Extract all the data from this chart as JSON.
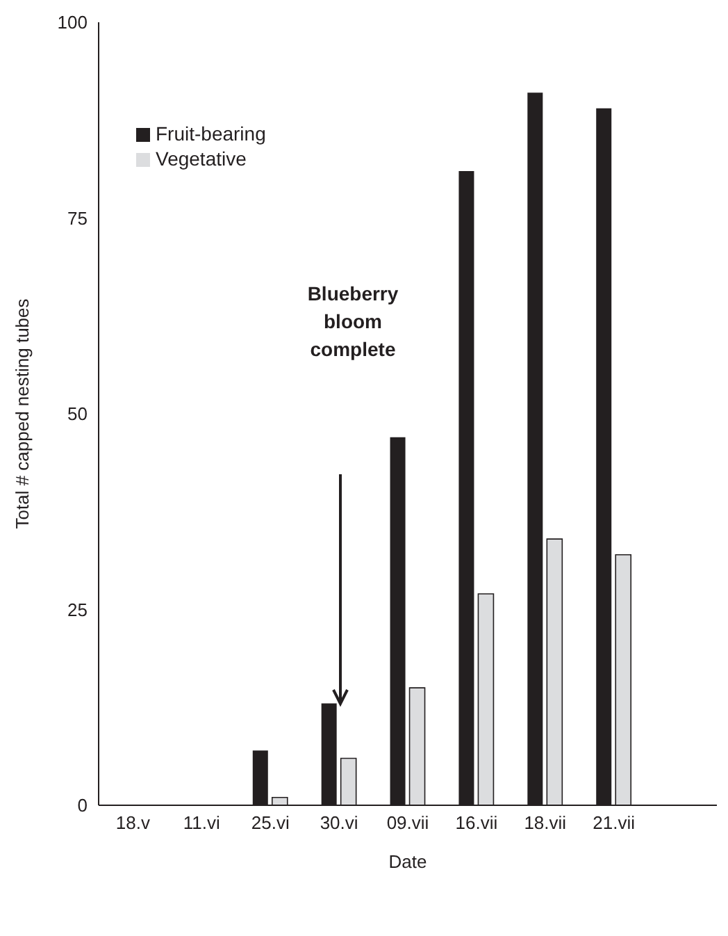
{
  "chart_data": {
    "type": "bar",
    "xlabel": "Date",
    "ylabel": "Total # capped nesting tubes",
    "categories": [
      "18.v",
      "11.vi",
      "25.vi",
      "30.vi",
      "09.vii",
      "16.vii",
      "18.vii",
      "21.vii",
      null
    ],
    "series": [
      {
        "name": "Fruit-bearing",
        "color": "#231f20",
        "values": [
          0,
          0,
          7,
          13,
          47,
          81,
          91,
          89,
          null
        ]
      },
      {
        "name": "Vegetative",
        "color": "#dcdddf",
        "values": [
          0,
          0,
          1,
          6,
          15,
          27,
          34,
          32,
          null
        ]
      }
    ],
    "ylim": [
      0,
      100
    ],
    "yticks": [
      0,
      25,
      50,
      75,
      100
    ],
    "grid": false,
    "legend": "top left",
    "annotations": [
      "Blueberry bloom complete"
    ]
  }
}
